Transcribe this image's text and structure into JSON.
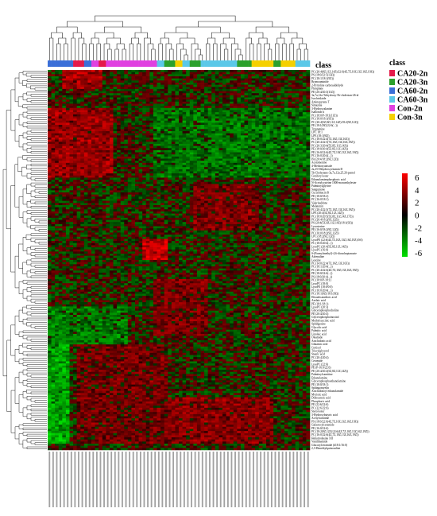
{
  "chart_data": {
    "type": "heatmap",
    "title": "",
    "xlabel": "",
    "ylabel": "",
    "class_bar_label": "class",
    "legend": {
      "title": "class",
      "placement": "right",
      "entries": [
        {
          "name": "CA20-2n",
          "color": "#e41a4a"
        },
        {
          "name": "CA20-3n",
          "color": "#2ca02c"
        },
        {
          "name": "CA60-2n",
          "color": "#3b6fd8"
        },
        {
          "name": "CA60-3n",
          "color": "#5bc8e8"
        },
        {
          "name": "Con-2n",
          "color": "#e040e0"
        },
        {
          "name": "Con-3n",
          "color": "#f5d000"
        }
      ]
    },
    "colorbar": {
      "placement": "right",
      "range": [
        -6,
        6
      ],
      "ticks": [
        "6",
        "4",
        "2",
        "0",
        "-2",
        "-4",
        "-6"
      ],
      "low_color": "#00e000",
      "mid_color": "#000000",
      "high_color": "#ff0000"
    },
    "column_class_sequence": [
      {
        "class": "CA60-2n",
        "count": 7
      },
      {
        "class": "CA20-2n",
        "count": 3
      },
      {
        "class": "CA60-2n",
        "count": 2
      },
      {
        "class": "Con-2n",
        "count": 2
      },
      {
        "class": "CA20-2n",
        "count": 2
      },
      {
        "class": "Con-2n",
        "count": 14
      },
      {
        "class": "CA60-3n",
        "count": 2
      },
      {
        "class": "CA20-3n",
        "count": 3
      },
      {
        "class": "Con-3n",
        "count": 2
      },
      {
        "class": "CA60-3n",
        "count": 2
      },
      {
        "class": "CA20-3n",
        "count": 3
      },
      {
        "class": "CA60-3n",
        "count": 10
      },
      {
        "class": "CA20-3n",
        "count": 4
      },
      {
        "class": "Con-3n",
        "count": 6
      },
      {
        "class": "CA20-3n",
        "count": 2
      },
      {
        "class": "Con-3n",
        "count": 4
      },
      {
        "class": "CA60-3n",
        "count": 4
      }
    ],
    "n_rows": 180,
    "row_labels_first": [
      "PC (20:4(8Z,11Z,14Z)/22:6(4Z,7Z,10Z,13Z,16Z,19Z))",
      "PS (18:0/22:5(13Z))",
      "PC (18:1/18:1(9Z))",
      "Bromoaminide",
      "2-Pyrroline carboxaldehyde",
      "Phosphate",
      "PE (20:4/20:3(11Z))",
      "3a,7a,12a-Trihydroxy-5b-cholestan-26-al",
      "Isochrislaide",
      "Aminopyrene T",
      "Simazine",
      "3-Hydroxyalanine",
      "Isalloside a",
      "PC (18:0/P-18:1(11Z))",
      "PC (18:0/18:1(9Z))",
      "PC (20:4(5Z,8Z,11Z,14Z)/18:2(9Z,12Z))",
      "PE (18:1(9Z)/22:6(...))",
      "Tryptamine",
      "LPC 18:1",
      "LPE (18:1(9Z))",
      "PC (18:0/22:4(7Z,10Z,13Z,16Z))",
      "PC (20:4/22:5(7Z,10Z,13Z,16Z,19Z))",
      "PC (20:3/20:4(5Z,8Z,11Z,14Z))",
      "PE (18:0/20:4(5Z,8Z,11Z,14Z))",
      "PE (16:0/22:6(4Z,7Z,10Z,13Z,16Z,19Z))",
      "PC (16:0/20:4(...))",
      "PA (20:4/18:2(9Z,12Z))",
      "Acetomenine",
      "4-Methoxyanisole",
      "2a,25-Dihydroxyvitamin D",
      "5b-Cholestane-3a,7a,12a,25,26-pentol",
      "Coniferyl ester",
      "Ethanolaminephosphoric acid",
      "N-Acetylcysteine 1000-monoethylester",
      "Palmitoylglycine",
      "Sanguinone",
      "Cucurbitacin B",
      "PE (18:0/18:2)",
      "PC (16:0/18:1)",
      "Valerinaldone",
      "Melatonin",
      "PC (20:4/22:5(7Z,10Z,13Z,16Z,19Z))",
      "LPE (20:4(5Z,8Z,11Z,14Z))",
      "PC (18:0/20:5(5Z,8Z,11Z,14Z,17Z))",
      "PC (20:4/18:2(9Z,12Z))",
      "PS (20:4(5Z,8Z,11Z,14Z)/18:1(9Z))"
    ],
    "row_labels_mid": [
      "Lysosterine",
      "PE (16:0/18:2(9Z,12Z))",
      "PC (16:0/18:2(9Z,12Z))",
      "LPC (18:2(9Z,12Z))",
      "LysoPE (22:6(4Z,7Z,10Z,13Z,16Z,19Z)/0:0)",
      "PC (18:0/20:4(...))",
      "LysoPC (20:4(5Z,8Z,11Z,14Z))",
      "LysoPC (16:0)",
      "S-(Formylmethyl)-4,6-dioxoheptanoate",
      "Adrenaline",
      "Leucine",
      "PC (14:0/22:4(7Z,10Z,13Z,16Z))",
      "PC (18:1/20:4(...))",
      "PC (20:4/22:6(4Z,7Z,10Z,13Z,16Z,19Z))",
      "PE (18:0/22:6(...))",
      "PS (18:0/20:4(...))",
      "PC (18:0/P-18:1)",
      "LysoPC (18:0)",
      "LysoPE (18:0/0:0)",
      "PC (16:0/20:4(...))",
      "PC (18:1(9Z)/18:1(9Z))",
      "Hexadecanedioic acid",
      "Azelaic acid",
      "PE (18:1/18:1)",
      "LysoPC (20:3)",
      "Glycerophosphocholine"
    ],
    "row_labels_last": [
      "PE (20:4/20:4)",
      "Glycerophosphoinositol",
      "Methylsuccinic acid",
      "Sphingosine",
      "Glycolic acid",
      "Palmitic acid",
      "Linoleic acid",
      "Oleamide",
      "Arachidonic acid",
      "Glutamic acid",
      "Cortisol",
      "Triacylglycerol",
      "Stearic acid",
      "PC (20:4/20:4)",
      "Ceramide",
      "LysoPC (22:6)",
      "PE (P-16:0/22:6)",
      "PE (20:4/20:4(5Z,8Z,11Z,14Z))",
      "Palmitoylcarnitine",
      "Ethanolamine",
      "Glycerophosphoethanolamine",
      "PE (18:0/18:1)",
      "Sphingomyelin",
      "Arachidonoyl ethanolamide",
      "Myristic acid",
      "Dodecanoic acid",
      "Phosphoric acid",
      "PE (22:6/22:6)",
      "PC (22:6/22:6)",
      "Sterol ester",
      "3-Hydroxybutyric acid",
      "Acetylcarnitine",
      "PS (18:0/22:6(4Z,7Z,10Z,13Z,16Z,19Z))",
      "Galactosylceramide",
      "PE (16:0/22:6)",
      "PC (18:2(9Z,12Z)/22:6(4Z,7Z,10Z,13Z,16Z,19Z))",
      "PC (16:0/22:6(4Z,7Z,10Z,13Z,16Z,19Z))",
      "Heliotrodasine XII",
      "Vanillinamide",
      "Glucosylceramide (d18:1/16:0)",
      "2,3-Dimethylquinoxaline"
    ],
    "column_labels_note": "sample identifiers below heatmap are illegible"
  }
}
